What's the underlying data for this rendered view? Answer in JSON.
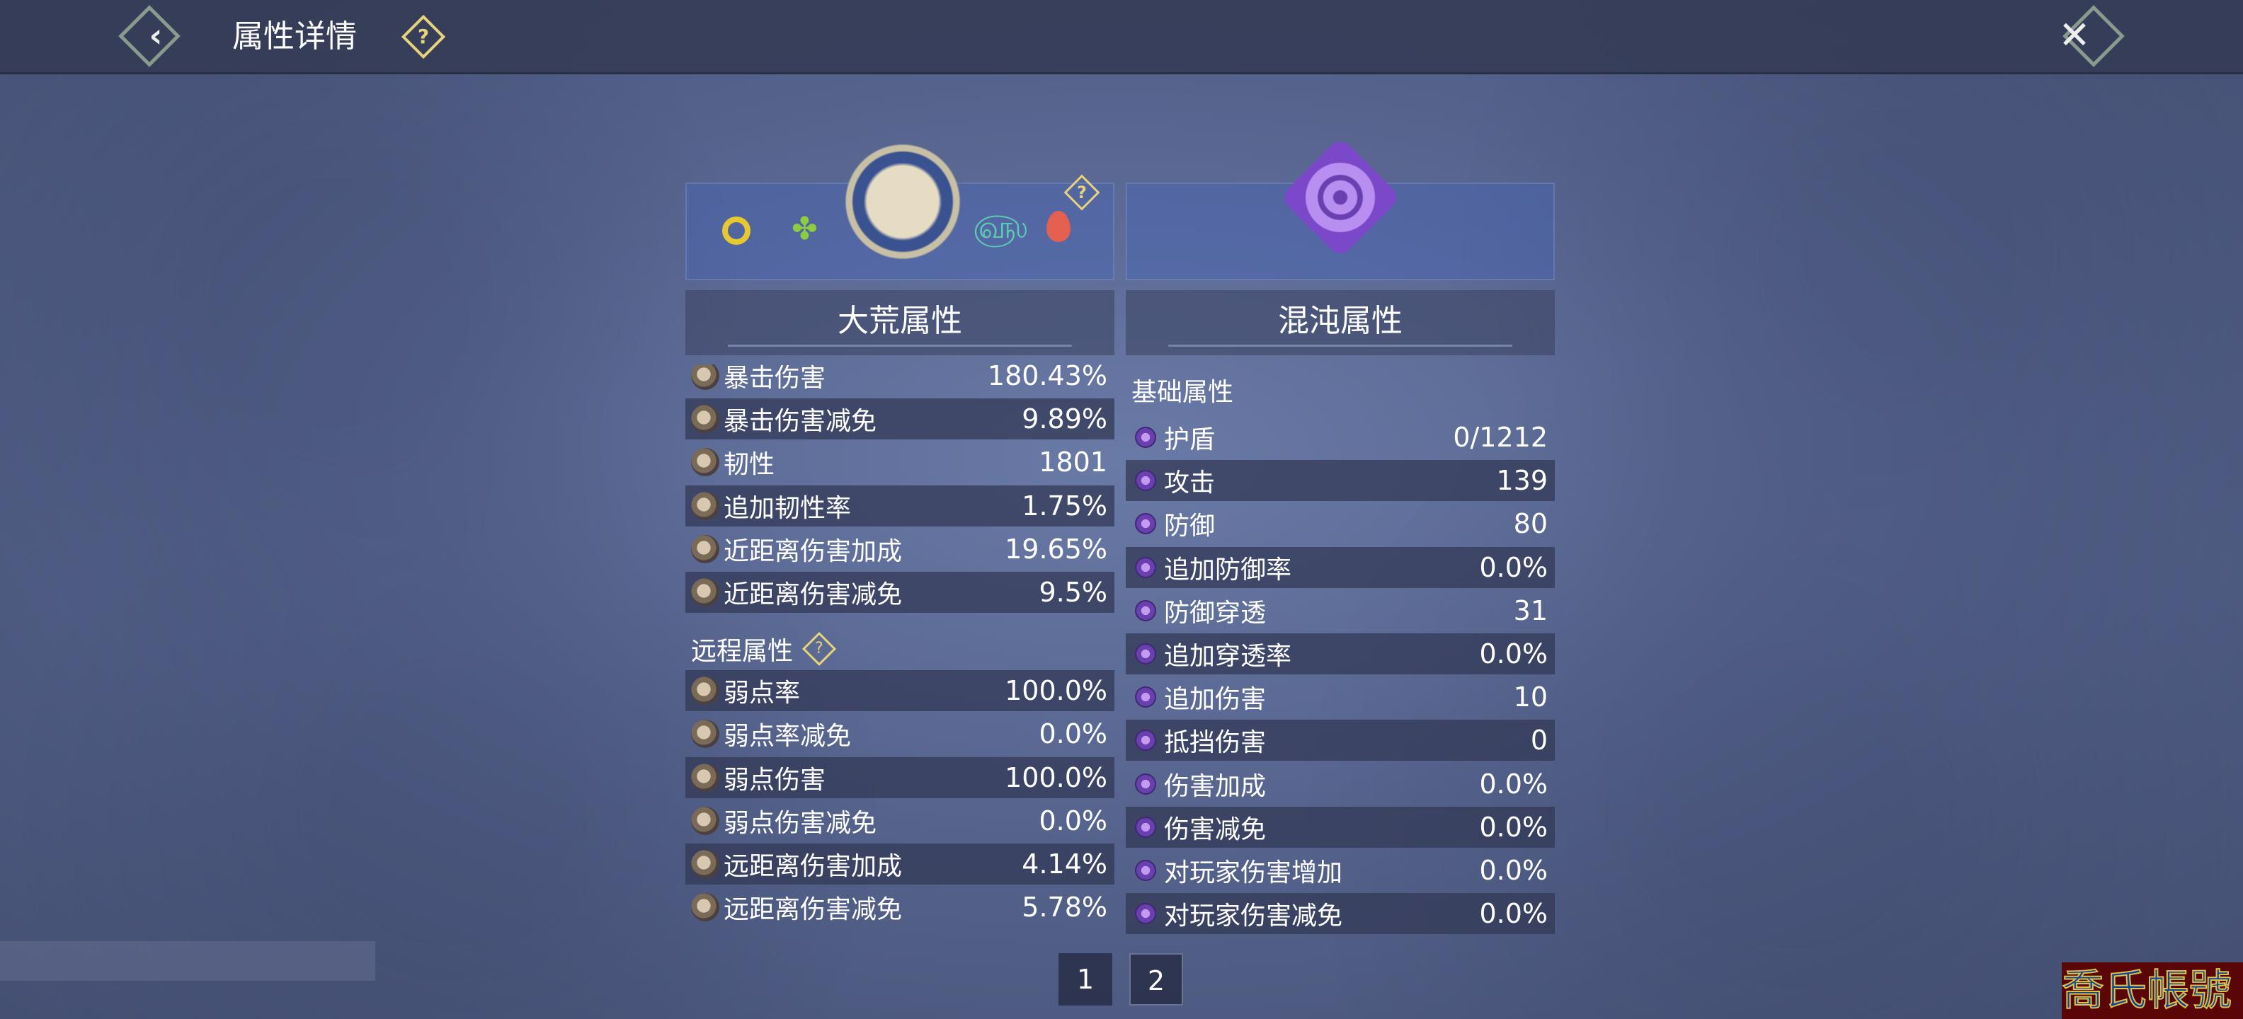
{
  "header": {
    "title": "属性详情",
    "back_icon": "back-icon",
    "help_icon": "help-icon",
    "close_icon": "close-icon"
  },
  "left_panel": {
    "title": "大荒属性",
    "element_icons": [
      "moon-icon",
      "tree-icon",
      "cloud-icon",
      "fire-icon"
    ],
    "rows_top": [
      {
        "label": "暴击伤害",
        "value": "180.43%"
      },
      {
        "label": "暴击伤害减免",
        "value": "9.89%"
      },
      {
        "label": "韧性",
        "value": "1801"
      },
      {
        "label": "追加韧性率",
        "value": "1.75%"
      },
      {
        "label": "近距离伤害加成",
        "value": "19.65%"
      },
      {
        "label": "近距离伤害减免",
        "value": "9.5%"
      }
    ],
    "section": "远程属性",
    "rows_bottom": [
      {
        "label": "弱点率",
        "value": "100.0%"
      },
      {
        "label": "弱点率减免",
        "value": "0.0%"
      },
      {
        "label": "弱点伤害",
        "value": "100.0%"
      },
      {
        "label": "弱点伤害减免",
        "value": "0.0%"
      },
      {
        "label": "远距离伤害加成",
        "value": "4.14%"
      },
      {
        "label": "远距离伤害减免",
        "value": "5.78%"
      }
    ]
  },
  "right_panel": {
    "title": "混沌属性",
    "section": "基础属性",
    "rows": [
      {
        "label": "护盾",
        "value": "0/1212"
      },
      {
        "label": "攻击",
        "value": "139"
      },
      {
        "label": "防御",
        "value": "80"
      },
      {
        "label": "追加防御率",
        "value": "0.0%"
      },
      {
        "label": "防御穿透",
        "value": "31"
      },
      {
        "label": "追加穿透率",
        "value": "0.0%"
      },
      {
        "label": "追加伤害",
        "value": "10"
      },
      {
        "label": "抵挡伤害",
        "value": "0"
      },
      {
        "label": "伤害加成",
        "value": "0.0%"
      },
      {
        "label": "伤害减免",
        "value": "0.0%"
      },
      {
        "label": "对玩家伤害增加",
        "value": "0.0%"
      },
      {
        "label": "对玩家伤害减免",
        "value": "0.0%"
      }
    ]
  },
  "pagination": {
    "pages": [
      "1",
      "2"
    ],
    "current": "2"
  },
  "watermark": "喬氏帳號",
  "colors": {
    "help": "#e6d37a",
    "chaos": "#a070e0",
    "accent_left": "#d8ccb0"
  }
}
